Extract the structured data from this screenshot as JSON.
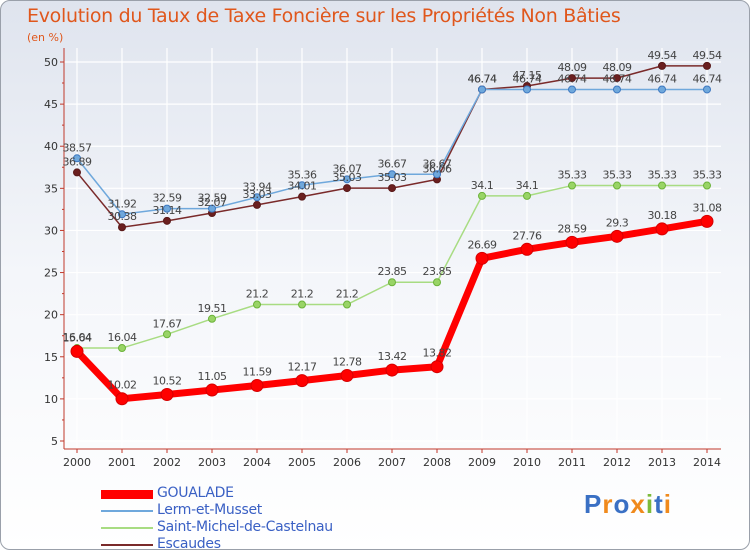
{
  "chart_data": {
    "type": "line",
    "title": "Evolution du Taux de Taxe Foncière sur les Propriétés Non Bâties",
    "ylabel": "(en %)",
    "xlabel": "",
    "ylim": [
      5,
      50
    ],
    "yticks": [
      5,
      10,
      15,
      20,
      25,
      30,
      35,
      40,
      45,
      50
    ],
    "x": [
      "2000",
      "2001",
      "2002",
      "2003",
      "2004",
      "2005",
      "2006",
      "2007",
      "2008",
      "2009",
      "2010",
      "2011",
      "2012",
      "2013",
      "2014"
    ],
    "grid": true,
    "series": [
      {
        "name": "GOUALADE",
        "color": "#ff0000",
        "values": [
          15.64,
          10.02,
          10.52,
          11.05,
          11.59,
          12.17,
          12.78,
          13.42,
          13.82,
          26.69,
          27.76,
          28.59,
          29.3,
          30.18,
          31.08
        ],
        "labels": [
          "15.64",
          "10.02",
          "10.52",
          "11.05",
          "11.59",
          "12.17",
          "12.78",
          "13.42",
          "13.82",
          "26.69",
          "27.76",
          "28.59",
          "29.3",
          "30.18",
          "31.08"
        ]
      },
      {
        "name": "Lerm-et-Musset",
        "color": "#6fa8dc",
        "values": [
          38.57,
          31.92,
          32.59,
          32.59,
          33.94,
          35.36,
          36.07,
          36.67,
          36.67,
          46.74,
          46.74,
          46.74,
          46.74,
          46.74,
          46.74
        ],
        "labels": [
          "38.57",
          "31.92",
          "32.59",
          "32.59",
          "33.94",
          "35.36",
          "36.07",
          "36.67",
          "36.67",
          "46.74",
          "46.74",
          "46.74",
          "46.74",
          "46.74",
          "46.74"
        ]
      },
      {
        "name": "Saint-Michel-de-Castelnau",
        "color": "#99d466",
        "values": [
          16.04,
          16.04,
          17.67,
          19.51,
          21.2,
          21.2,
          21.2,
          23.85,
          23.85,
          34.1,
          34.1,
          35.33,
          35.33,
          35.33,
          35.33
        ],
        "labels": [
          "16.04",
          "16.04",
          "17.67",
          "19.51",
          "21.2",
          "21.2",
          "21.2",
          "23.85",
          "23.85",
          "34.1",
          "34.1",
          "35.33",
          "35.33",
          "35.33",
          "35.33"
        ]
      },
      {
        "name": "Escaudes",
        "color": "#7a2a2a",
        "values": [
          36.89,
          30.38,
          31.14,
          32.07,
          33.03,
          34.01,
          35.03,
          35.03,
          36.06,
          46.74,
          47.15,
          48.09,
          48.09,
          49.54,
          49.54
        ],
        "labels": [
          "36.89",
          "30.38",
          "31.14",
          "32.07",
          "33.03",
          "34.01",
          "35.03",
          "35.03",
          "36.06",
          "46.74",
          "47.15",
          "48.09",
          "48.09",
          "49.54",
          "49.54"
        ]
      }
    ]
  },
  "brand": {
    "logo_text": "Proxiti"
  }
}
